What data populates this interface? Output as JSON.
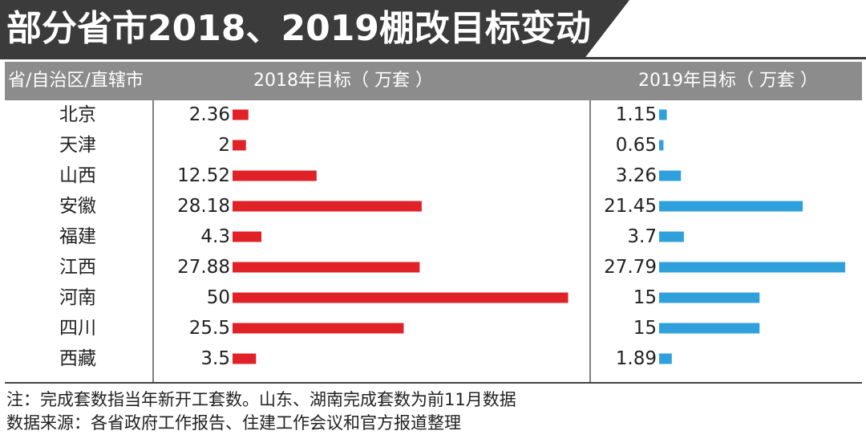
{
  "title": "部分省市2018、2019棚改目标变动",
  "header": {
    "province": "省/自治区/直辖市",
    "col2018": "2018年目标（ 万套 ）",
    "col2019": "2019年目标（ 万套 ）"
  },
  "colors": {
    "title_band": "#3b3b3b",
    "header_bg": "#8c8c8c",
    "bar2018": "#e02127",
    "bar2019": "#2fa0dc",
    "divider": "#555555"
  },
  "chart_data": {
    "type": "bar",
    "orientation": "horizontal",
    "categories": [
      "北京",
      "天津",
      "山西",
      "安徽",
      "福建",
      "江西",
      "河南",
      "四川",
      "西藏"
    ],
    "series": [
      {
        "name": "2018年目标（ 万套 ）",
        "values": [
          2.36,
          2,
          12.52,
          28.18,
          4.3,
          27.88,
          50,
          25.5,
          3.5
        ],
        "labels": [
          "2.36",
          "2",
          "12.52",
          "28.18",
          "4.3",
          "27.88",
          "50",
          "25.5",
          "3.5"
        ]
      },
      {
        "name": "2019年目标（ 万套 ）",
        "values": [
          1.15,
          0.65,
          3.26,
          21.45,
          3.7,
          27.79,
          15,
          15,
          1.89
        ],
        "labels": [
          "1.15",
          "0.65",
          "3.26",
          "21.45",
          "3.7",
          "27.79",
          "15",
          "15",
          "1.89"
        ]
      }
    ],
    "legend": "none",
    "grid": false
  },
  "notes": [
    "注：完成套数指当年新开工套数。山东、湖南完成套数为前11月数据",
    "数据来源：各省政府工作报告、住建工作会议和官方报道整理"
  ]
}
